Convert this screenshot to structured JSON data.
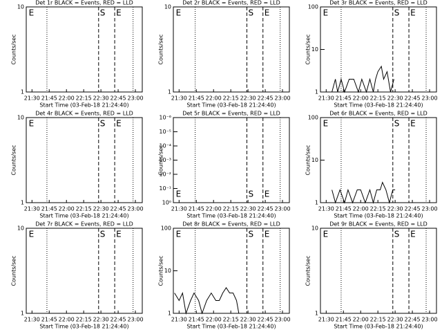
{
  "chart_data": [
    {
      "type": "line",
      "title": "Det 1r BLACK = Events, RED = LLD",
      "ylabel": "Counts/sec",
      "xlabel": "Start Time (03-Feb-18 21:24:40)",
      "xlim": [
        1285,
        1386
      ],
      "xticks": [
        {
          "value": 1290,
          "label": "21:30"
        },
        {
          "value": 1305,
          "label": "21:45"
        },
        {
          "value": 1320,
          "label": "22:00"
        },
        {
          "value": 1335,
          "label": "22:15"
        },
        {
          "value": 1350,
          "label": "22:30"
        },
        {
          "value": 1365,
          "label": "22:45"
        },
        {
          "value": 1380,
          "label": "23:00"
        }
      ],
      "ylim": [
        1,
        10
      ],
      "yticks": [
        1,
        10
      ],
      "log_y": true,
      "marker_label_position": "top",
      "markers": [
        {
          "x": 1286,
          "style": "none",
          "label": "E"
        },
        {
          "x": 1303,
          "style": "dotted"
        },
        {
          "x": 1348,
          "style": "dashed",
          "label": "S"
        },
        {
          "x": 1362,
          "style": "dashed",
          "label": "E"
        },
        {
          "x": 1378,
          "style": "dotted"
        }
      ],
      "series": []
    },
    {
      "type": "line",
      "title": "Det 2r BLACK = Events, RED = LLD",
      "ylabel": "Counts/sec",
      "xlabel": "Start Time (03-Feb-18 21:24:40)",
      "xlim": [
        1285,
        1386
      ],
      "xticks": [
        {
          "value": 1290,
          "label": "21:30"
        },
        {
          "value": 1305,
          "label": "21:45"
        },
        {
          "value": 1320,
          "label": "22:00"
        },
        {
          "value": 1335,
          "label": "22:15"
        },
        {
          "value": 1350,
          "label": "22:30"
        },
        {
          "value": 1365,
          "label": "22:45"
        },
        {
          "value": 1380,
          "label": "23:00"
        }
      ],
      "ylim": [
        1,
        10
      ],
      "yticks": [
        1,
        10
      ],
      "log_y": true,
      "marker_label_position": "top",
      "markers": [
        {
          "x": 1286,
          "style": "none",
          "label": "E"
        },
        {
          "x": 1304,
          "style": "dotted"
        },
        {
          "x": 1349,
          "style": "dashed",
          "label": "S"
        },
        {
          "x": 1363,
          "style": "dashed",
          "label": "E"
        },
        {
          "x": 1378,
          "style": "dotted"
        }
      ],
      "series": []
    },
    {
      "type": "line",
      "title": "Det 3r BLACK = Events, RED = LLD",
      "ylabel": "Counts/sec",
      "xlabel": "Start Time (03-Feb-18 21:24:40)",
      "xlim": [
        1285,
        1386
      ],
      "xticks": [
        {
          "value": 1290,
          "label": "21:30"
        },
        {
          "value": 1305,
          "label": "21:45"
        },
        {
          "value": 1320,
          "label": "22:00"
        },
        {
          "value": 1335,
          "label": "22:15"
        },
        {
          "value": 1350,
          "label": "22:30"
        },
        {
          "value": 1365,
          "label": "22:45"
        },
        {
          "value": 1380,
          "label": "23:00"
        }
      ],
      "ylim": [
        1,
        100
      ],
      "yticks": [
        1,
        10,
        100
      ],
      "log_y": true,
      "marker_label_position": "top",
      "markers": [
        {
          "x": 1286,
          "style": "none",
          "label": "E"
        },
        {
          "x": 1303,
          "style": "dotted"
        },
        {
          "x": 1348,
          "style": "dashed",
          "label": "S"
        },
        {
          "x": 1362,
          "style": "dashed",
          "label": "E"
        },
        {
          "x": 1377,
          "style": "dotted"
        }
      ],
      "series": [
        {
          "color": "#000000",
          "x": [
            1295,
            1298,
            1300,
            1303,
            1306,
            1310,
            1314,
            1318,
            1321,
            1325,
            1328,
            1331,
            1333,
            1335,
            1338,
            1340,
            1343,
            1346,
            1349
          ],
          "values": [
            1,
            2,
            1,
            2,
            1,
            2,
            2,
            1,
            2,
            1,
            2,
            1,
            2,
            3,
            4,
            2,
            3,
            1,
            2
          ]
        }
      ]
    },
    {
      "type": "line",
      "title": "Det 4r BLACK = Events, RED = LLD",
      "ylabel": "Counts/sec",
      "xlabel": "Start Time (03-Feb-18 21:24:40)",
      "xlim": [
        1285,
        1386
      ],
      "xticks": [
        {
          "value": 1290,
          "label": "21:30"
        },
        {
          "value": 1305,
          "label": "21:45"
        },
        {
          "value": 1320,
          "label": "22:00"
        },
        {
          "value": 1335,
          "label": "22:15"
        },
        {
          "value": 1350,
          "label": "22:30"
        },
        {
          "value": 1365,
          "label": "22:45"
        },
        {
          "value": 1380,
          "label": "23:00"
        }
      ],
      "ylim": [
        1,
        10
      ],
      "yticks": [
        1,
        10
      ],
      "log_y": true,
      "marker_label_position": "top",
      "markers": [
        {
          "x": 1286,
          "style": "none",
          "label": "E"
        },
        {
          "x": 1303,
          "style": "dotted"
        },
        {
          "x": 1348,
          "style": "dashed",
          "label": "S"
        },
        {
          "x": 1362,
          "style": "dashed",
          "label": "E"
        },
        {
          "x": 1378,
          "style": "dotted"
        }
      ],
      "series": []
    },
    {
      "type": "line",
      "title": "Det 5r BLACK = Events, RED = LLD",
      "ylabel": "Counts/sec",
      "xlabel": "Start Time (03-Feb-18 21:24:40)",
      "xlim": [
        1285,
        1386
      ],
      "xticks": [
        {
          "value": 1290,
          "label": "21:30"
        },
        {
          "value": 1305,
          "label": "21:45"
        },
        {
          "value": 1320,
          "label": "22:00"
        },
        {
          "value": 1335,
          "label": "22:15"
        },
        {
          "value": 1350,
          "label": "22:30"
        },
        {
          "value": 1365,
          "label": "22:45"
        },
        {
          "value": 1380,
          "label": "23:00"
        }
      ],
      "ylim": [
        1,
        1e-06
      ],
      "yticks": [
        {
          "value": 1,
          "label": "10⁰"
        },
        {
          "value": 0.1,
          "label": "10⁻¹"
        },
        {
          "value": 0.01,
          "label": "10⁻²"
        },
        {
          "value": 0.001,
          "label": "10⁻³"
        },
        {
          "value": 0.0001,
          "label": "10⁻⁴"
        },
        {
          "value": 1e-05,
          "label": "10⁻⁵"
        },
        {
          "value": 1e-06,
          "label": "10⁻⁶"
        }
      ],
      "log_y": true,
      "marker_label_position": "bottom",
      "markers": [
        {
          "x": 1286,
          "style": "none",
          "label": "E"
        },
        {
          "x": 1304,
          "style": "dotted"
        },
        {
          "x": 1349,
          "style": "dashed",
          "label": "S"
        },
        {
          "x": 1363,
          "style": "dashed",
          "label": "E"
        },
        {
          "x": 1378,
          "style": "dotted"
        }
      ],
      "series": []
    },
    {
      "type": "line",
      "title": "Det 6r BLACK = Events, RED = LLD",
      "ylabel": "Counts/sec",
      "xlabel": "Start Time (03-Feb-18 21:24:40)",
      "xlim": [
        1285,
        1386
      ],
      "xticks": [
        {
          "value": 1290,
          "label": "21:30"
        },
        {
          "value": 1305,
          "label": "21:45"
        },
        {
          "value": 1320,
          "label": "22:00"
        },
        {
          "value": 1335,
          "label": "22:15"
        },
        {
          "value": 1350,
          "label": "22:30"
        },
        {
          "value": 1365,
          "label": "22:45"
        },
        {
          "value": 1380,
          "label": "23:00"
        }
      ],
      "ylim": [
        1,
        100
      ],
      "yticks": [
        1,
        10,
        100
      ],
      "log_y": true,
      "marker_label_position": "top",
      "markers": [
        {
          "x": 1286,
          "style": "none",
          "label": "E"
        },
        {
          "x": 1303,
          "style": "dotted"
        },
        {
          "x": 1348,
          "style": "dashed",
          "label": "S"
        },
        {
          "x": 1362,
          "style": "dashed",
          "label": "E"
        },
        {
          "x": 1377,
          "style": "dotted"
        }
      ],
      "series": [
        {
          "color": "#000000",
          "x": [
            1295,
            1298,
            1302,
            1306,
            1309,
            1313,
            1317,
            1320,
            1324,
            1328,
            1331,
            1334,
            1337,
            1339,
            1342,
            1345,
            1348,
            1350
          ],
          "values": [
            2,
            1,
            2,
            1,
            2,
            1,
            2,
            2,
            1,
            2,
            1,
            2,
            2,
            3,
            2,
            1,
            2,
            2
          ]
        }
      ]
    },
    {
      "type": "line",
      "title": "Det 7r BLACK = Events, RED = LLD",
      "ylabel": "Counts/sec",
      "xlabel": "Start Time (03-Feb-18 21:24:40)",
      "xlim": [
        1285,
        1386
      ],
      "xticks": [
        {
          "value": 1290,
          "label": "21:30"
        },
        {
          "value": 1305,
          "label": "21:45"
        },
        {
          "value": 1320,
          "label": "22:00"
        },
        {
          "value": 1335,
          "label": "22:15"
        },
        {
          "value": 1350,
          "label": "22:30"
        },
        {
          "value": 1365,
          "label": "22:45"
        },
        {
          "value": 1380,
          "label": "23:00"
        }
      ],
      "ylim": [
        1,
        10
      ],
      "yticks": [
        1,
        10
      ],
      "log_y": true,
      "marker_label_position": "top",
      "markers": [
        {
          "x": 1286,
          "style": "none",
          "label": "E"
        },
        {
          "x": 1303,
          "style": "dotted"
        },
        {
          "x": 1348,
          "style": "dashed",
          "label": "S"
        },
        {
          "x": 1362,
          "style": "dashed",
          "label": "E"
        },
        {
          "x": 1378,
          "style": "dotted"
        }
      ],
      "series": []
    },
    {
      "type": "line",
      "title": "Det 8r BLACK = Events, RED = LLD",
      "ylabel": "Counts/sec",
      "xlabel": "Start Time (03-Feb-18 21:24:40)",
      "xlim": [
        1285,
        1386
      ],
      "xticks": [
        {
          "value": 1290,
          "label": "21:30"
        },
        {
          "value": 1305,
          "label": "21:45"
        },
        {
          "value": 1320,
          "label": "22:00"
        },
        {
          "value": 1335,
          "label": "22:15"
        },
        {
          "value": 1350,
          "label": "22:30"
        },
        {
          "value": 1365,
          "label": "22:45"
        },
        {
          "value": 1380,
          "label": "23:00"
        }
      ],
      "ylim": [
        1,
        100
      ],
      "yticks": [
        1,
        10,
        100
      ],
      "log_y": true,
      "marker_label_position": "top",
      "markers": [
        {
          "x": 1286,
          "style": "none",
          "label": "E"
        },
        {
          "x": 1304,
          "style": "dotted"
        },
        {
          "x": 1349,
          "style": "dashed",
          "label": "S"
        },
        {
          "x": 1363,
          "style": "dashed",
          "label": "E"
        },
        {
          "x": 1378,
          "style": "dotted"
        }
      ],
      "series": [
        {
          "color": "#000000",
          "x": [
            1286,
            1290,
            1293,
            1296,
            1300,
            1303,
            1307,
            1310,
            1314,
            1318,
            1322,
            1325,
            1328,
            1331,
            1334,
            1337,
            1340,
            1342
          ],
          "values": [
            3,
            2,
            3,
            1,
            2,
            3,
            2,
            1,
            2,
            3,
            2,
            2,
            3,
            4,
            3,
            3,
            2,
            1
          ]
        }
      ]
    },
    {
      "type": "line",
      "title": "Det 9r BLACK = Events, RED = LLD",
      "ylabel": "Counts/sec",
      "xlabel": "Start Time (03-Feb-18 21:24:40)",
      "xlim": [
        1285,
        1386
      ],
      "xticks": [
        {
          "value": 1290,
          "label": "21:30"
        },
        {
          "value": 1305,
          "label": "21:45"
        },
        {
          "value": 1320,
          "label": "22:00"
        },
        {
          "value": 1335,
          "label": "22:15"
        },
        {
          "value": 1350,
          "label": "22:30"
        },
        {
          "value": 1365,
          "label": "22:45"
        },
        {
          "value": 1380,
          "label": "23:00"
        }
      ],
      "ylim": [
        1,
        10
      ],
      "yticks": [
        1,
        10
      ],
      "log_y": true,
      "marker_label_position": "top",
      "markers": [
        {
          "x": 1286,
          "style": "none",
          "label": "E"
        },
        {
          "x": 1303,
          "style": "dotted"
        },
        {
          "x": 1348,
          "style": "dashed",
          "label": "S"
        },
        {
          "x": 1362,
          "style": "dashed",
          "label": "E"
        },
        {
          "x": 1377,
          "style": "dotted"
        }
      ],
      "series": []
    }
  ]
}
